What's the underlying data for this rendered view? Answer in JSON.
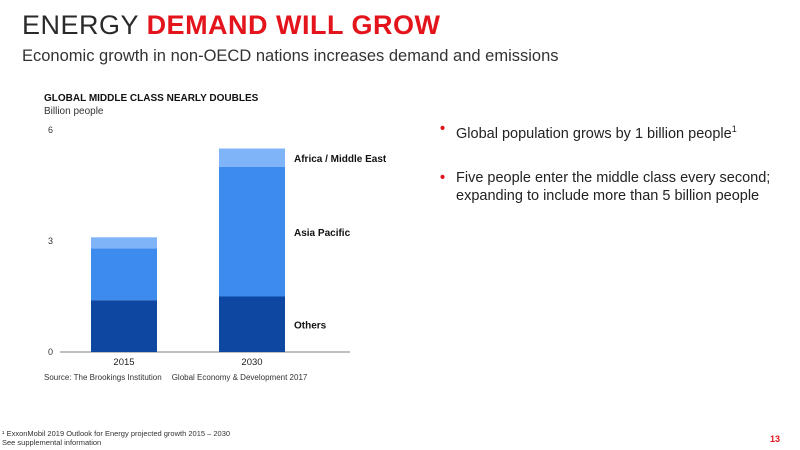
{
  "header": {
    "title_part1": "ENERGY",
    "title_part2": "DEMAND WILL GROW",
    "subtitle": "Economic growth in non-OECD nations increases demand and emissions"
  },
  "chart_data": {
    "type": "bar",
    "stacked": true,
    "title": "GLOBAL MIDDLE CLASS NEARLY DOUBLES",
    "ylabel": "Billion people",
    "categories": [
      "2015",
      "2030"
    ],
    "series": [
      {
        "name": "Others",
        "values": [
          1.4,
          1.5
        ],
        "color": "#0d47a1"
      },
      {
        "name": "Asia Pacific",
        "values": [
          1.4,
          3.5
        ],
        "color": "#3d8bef"
      },
      {
        "name": "Africa / Middle East",
        "values": [
          0.3,
          0.5
        ],
        "color": "#7fb4f8"
      }
    ],
    "ylim": [
      0,
      6
    ],
    "yticks": [
      0,
      3,
      6
    ],
    "legend": "right",
    "grid": false
  },
  "source": {
    "part1": "Source: The Brookings Institution",
    "part2": "Global Economy & Development 2017"
  },
  "bullets": [
    {
      "text": "Global population grows by 1 billion people",
      "sup": "1"
    },
    {
      "text": "Five people enter the middle class every second; expanding to include more than 5 billion people",
      "sup": ""
    }
  ],
  "footnote": {
    "line1": "¹ ExxonMobil 2019 Outlook for Energy projected growth 2015 – 2030",
    "line2": "See supplemental information"
  },
  "page_number": "13",
  "colors": {
    "accent": "#e3141b"
  }
}
